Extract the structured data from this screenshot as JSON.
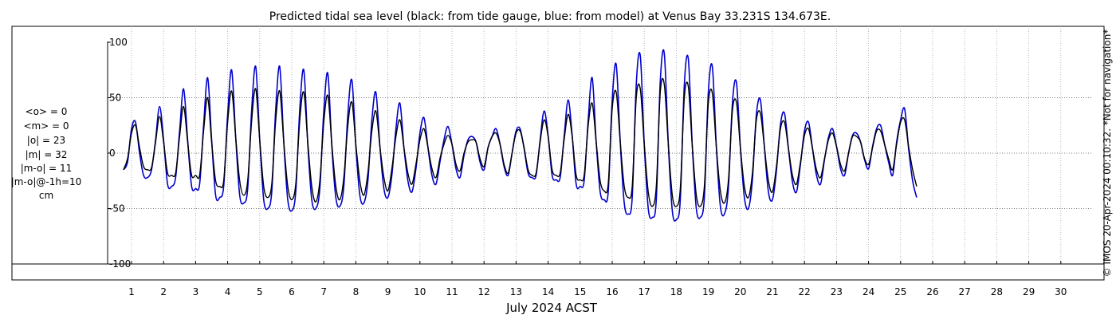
{
  "chart_data": {
    "type": "line",
    "title": "Predicted tidal sea level (black: from tide gauge, blue: from model) at Venus Bay 33.231S 134.673E.",
    "xlabel": "July 2024 ACST",
    "ylabel": "",
    "unit": "cm",
    "ylim": [
      -110,
      110
    ],
    "yticks": [
      100,
      50,
      0,
      -50,
      -100
    ],
    "xlim": [
      0.65,
      31.0
    ],
    "xticks": [
      1,
      2,
      3,
      4,
      5,
      6,
      7,
      8,
      9,
      10,
      11,
      12,
      13,
      14,
      15,
      16,
      17,
      18,
      19,
      20,
      21,
      22,
      23,
      24,
      25,
      26,
      27,
      28,
      29,
      30
    ],
    "grid": "vertical dotted at day ticks, horizontal dotted at ±50 and 0",
    "legend": "none",
    "colors": {
      "gauge": "#000000",
      "model": "#0000cc"
    },
    "series": [
      {
        "key": "gauge",
        "x_step_days": 0.125,
        "x_start_day": 0.75,
        "values": [
          -15,
          -5,
          18,
          25,
          5,
          -12,
          -15,
          -13,
          10,
          33,
          10,
          -18,
          -20,
          -18,
          15,
          42,
          10,
          -20,
          -20,
          -20,
          20,
          50,
          10,
          -25,
          -30,
          -25,
          28,
          56,
          15,
          -25,
          -38,
          -25,
          30,
          58,
          12,
          -30,
          -40,
          -28,
          30,
          56,
          10,
          -30,
          -42,
          -28,
          30,
          55,
          10,
          -30,
          -44,
          -25,
          28,
          52,
          8,
          -30,
          -42,
          -22,
          25,
          46,
          8,
          -25,
          -38,
          -18,
          20,
          38,
          6,
          -22,
          -34,
          -14,
          15,
          30,
          5,
          -18,
          -28,
          -10,
          12,
          22,
          5,
          -14,
          -22,
          -5,
          8,
          16,
          8,
          -10,
          -16,
          0,
          10,
          12,
          10,
          -5,
          -12,
          5,
          15,
          18,
          8,
          -10,
          -18,
          0,
          18,
          20,
          5,
          -15,
          -20,
          -18,
          10,
          30,
          15,
          -15,
          -20,
          -18,
          12,
          35,
          15,
          -20,
          -24,
          -20,
          25,
          45,
          10,
          -25,
          -34,
          -28,
          40,
          55,
          10,
          -30,
          -40,
          -30,
          50,
          58,
          8,
          -35,
          -48,
          -30,
          55,
          62,
          8,
          -38,
          -48,
          -32,
          50,
          60,
          6,
          -38,
          -48,
          -30,
          45,
          54,
          5,
          -34,
          -45,
          -25,
          38,
          46,
          5,
          -30,
          -40,
          -18,
          30,
          36,
          5,
          -25,
          -35,
          -12,
          22,
          28,
          4,
          -20,
          -28,
          -8,
          16,
          22,
          4,
          -15,
          -22,
          -5,
          12,
          18,
          6,
          -10,
          -16,
          0,
          15,
          15,
          10,
          -5,
          -10,
          5,
          20,
          20,
          8,
          -5,
          -15,
          8,
          28,
          30,
          6,
          -15,
          -30
        ]
      },
      {
        "key": "model",
        "x_step_days": 0.125,
        "x_start_day": 0.75,
        "values": [
          -15,
          -8,
          22,
          28,
          0,
          -20,
          -22,
          -15,
          12,
          42,
          12,
          -28,
          -30,
          -22,
          20,
          58,
          12,
          -30,
          -32,
          -28,
          25,
          68,
          12,
          -38,
          -40,
          -30,
          35,
          75,
          15,
          -38,
          -45,
          -32,
          40,
          78,
          12,
          -42,
          -50,
          -35,
          40,
          78,
          10,
          -42,
          -52,
          -35,
          40,
          75,
          8,
          -42,
          -50,
          -32,
          38,
          72,
          6,
          -40,
          -48,
          -30,
          35,
          66,
          6,
          -38,
          -45,
          -25,
          30,
          55,
          6,
          -32,
          -40,
          -20,
          22,
          45,
          5,
          -25,
          -35,
          -14,
          18,
          32,
          5,
          -20,
          -28,
          -8,
          12,
          24,
          8,
          -14,
          -22,
          -2,
          12,
          15,
          10,
          -8,
          -15,
          5,
          15,
          22,
          8,
          -12,
          -20,
          0,
          20,
          22,
          4,
          -18,
          -22,
          -20,
          12,
          38,
          16,
          -20,
          -24,
          -22,
          15,
          48,
          16,
          -28,
          -30,
          -25,
          30,
          68,
          10,
          -35,
          -42,
          -35,
          48,
          80,
          10,
          -45,
          -55,
          -40,
          62,
          88,
          8,
          -50,
          -58,
          -42,
          65,
          90,
          8,
          -52,
          -60,
          -42,
          62,
          85,
          6,
          -50,
          -58,
          -40,
          55,
          78,
          5,
          -48,
          -55,
          -32,
          45,
          64,
          5,
          -40,
          -50,
          -24,
          35,
          48,
          5,
          -35,
          -42,
          -16,
          26,
          36,
          4,
          -26,
          -35,
          -10,
          20,
          28,
          4,
          -20,
          -28,
          -6,
          14,
          22,
          6,
          -14,
          -20,
          0,
          16,
          18,
          10,
          -6,
          -14,
          6,
          22,
          25,
          8,
          -8,
          -20,
          10,
          30,
          40,
          4,
          -25,
          -40
        ]
      }
    ],
    "stats": [
      "<o> = 0",
      "<m> = 0",
      "|o| = 23",
      "|m| = 32",
      "|m-o| = 11",
      "|m-o|@-1h=10",
      "cm"
    ],
    "side_note": "© IMOS 20-Apr-2024 00:10:32. *Not for navigation*"
  }
}
